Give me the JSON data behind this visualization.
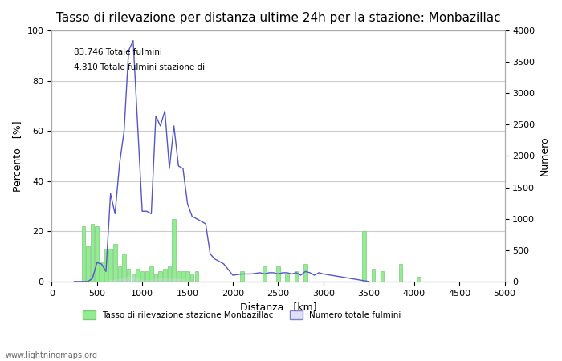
{
  "title": "Tasso di rilevazione per distanza ultime 24h per la stazione: Monbazillac",
  "annotation_line1": "83.746 Totale fulmini",
  "annotation_line2": "4.310 Totale fulmini stazione di",
  "xlabel": "Distanza   [km]",
  "ylabel_left": "Percento   [%]",
  "ylabel_right": "Numero",
  "xlim": [
    0,
    5000
  ],
  "ylim_left": [
    0,
    100
  ],
  "ylim_right": [
    0,
    4000
  ],
  "xticks": [
    0,
    500,
    1000,
    1500,
    2000,
    2500,
    3000,
    3500,
    4000,
    4500,
    5000
  ],
  "yticks_left": [
    0,
    20,
    40,
    60,
    80,
    100
  ],
  "yticks_right": [
    0,
    500,
    1000,
    1500,
    2000,
    2500,
    3000,
    3500,
    4000
  ],
  "legend_label_bar": "Tasso di rilevazione stazione Monbazillac",
  "legend_label_fill": "Numero totale fulmini",
  "bar_color": "#90EE90",
  "bar_edge_color": "#7EC87E",
  "fill_color": "#d8d8f8",
  "fill_edge_color": "#6666bb",
  "line_color": "#5555cc",
  "background_color": "#ffffff",
  "footer_text": "www.lightningmaps.org",
  "title_fontsize": 11,
  "axis_fontsize": 9,
  "tick_fontsize": 8,
  "bar_distances": [
    250,
    300,
    350,
    400,
    450,
    500,
    550,
    600,
    650,
    700,
    750,
    800,
    850,
    900,
    950,
    1000,
    1050,
    1100,
    1150,
    1200,
    1250,
    1300,
    1350,
    1400,
    1450,
    1500,
    1550,
    1600,
    1650,
    1700,
    1750,
    1800,
    1850,
    1900,
    1950,
    2000,
    2050,
    2100,
    2150,
    2200,
    2250,
    2300,
    2350,
    2400,
    2450,
    2500,
    2550,
    2600,
    2650,
    2700,
    2750,
    2800,
    2850,
    2900,
    2950,
    3000,
    3050,
    3100,
    3150,
    3200,
    3250,
    3300,
    3350,
    3400,
    3450,
    3500,
    3550,
    3600,
    3650,
    3700,
    3750,
    3800,
    3850,
    3900,
    3950,
    4000,
    4050,
    4100
  ],
  "bar_values": [
    0,
    0,
    22,
    14,
    23,
    22,
    8,
    13,
    13,
    15,
    6,
    11,
    5,
    3,
    5,
    4,
    4,
    6,
    3,
    4,
    5,
    6,
    25,
    4,
    4,
    4,
    3,
    4,
    0,
    0,
    0,
    0,
    0,
    0,
    0,
    0,
    0,
    4,
    0,
    0,
    0,
    0,
    6,
    0,
    0,
    6,
    0,
    3,
    0,
    4,
    0,
    7,
    0,
    0,
    0,
    0,
    0,
    0,
    0,
    0,
    0,
    0,
    0,
    0,
    20,
    0,
    5,
    0,
    4,
    0,
    0,
    0,
    7,
    0,
    0,
    0,
    2,
    0
  ],
  "line_distances": [
    250,
    300,
    350,
    400,
    450,
    500,
    550,
    600,
    650,
    700,
    750,
    800,
    850,
    900,
    950,
    1000,
    1050,
    1100,
    1150,
    1200,
    1250,
    1300,
    1350,
    1400,
    1450,
    1500,
    1550,
    1600,
    1650,
    1700,
    1750,
    1800,
    1900,
    2000,
    2100,
    2200,
    2300,
    2350,
    2400,
    2450,
    2500,
    2550,
    2600,
    2650,
    2700,
    2750,
    2800,
    2850,
    2900,
    2950,
    3000,
    3500
  ],
  "line_values": [
    0,
    0,
    0,
    0,
    1.2,
    7.5,
    7,
    4,
    35,
    27,
    47,
    60,
    92,
    96,
    62,
    28,
    28,
    27,
    66,
    62,
    68,
    45,
    62,
    46,
    45,
    31,
    26,
    25,
    24,
    23,
    11,
    9,
    7,
    2.5,
    3,
    3,
    3.5,
    3,
    3.5,
    3.5,
    3,
    3.5,
    3.5,
    3,
    3.5,
    2.5,
    4,
    3.5,
    2.5,
    3.5,
    3,
    0
  ],
  "fill_distances": [
    600,
    650,
    700,
    750,
    800,
    850,
    900,
    950,
    1000,
    1050,
    1100,
    1150,
    1200,
    1250,
    1300,
    1350,
    1400,
    1450,
    1500,
    1550
  ],
  "fill_values": [
    4,
    35,
    27,
    47,
    60,
    92,
    96,
    62,
    28,
    28,
    27,
    66,
    62,
    68,
    45,
    62,
    46,
    45,
    31,
    0
  ]
}
